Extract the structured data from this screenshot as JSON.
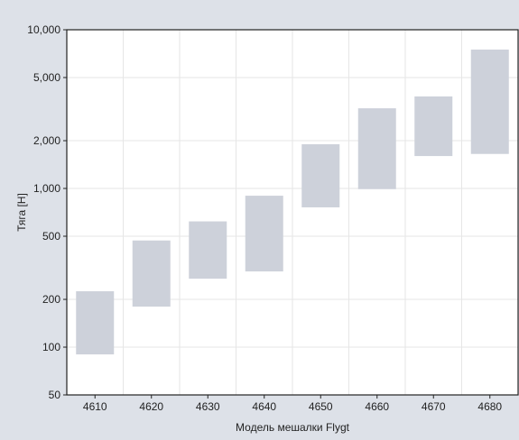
{
  "chart_data": {
    "type": "bar",
    "subtype": "floating-range",
    "title": "",
    "xlabel": "Модель мешалки Flygt",
    "ylabel": "Тяга [Н]",
    "y_scale": "log",
    "ylim": [
      50,
      10000
    ],
    "y_ticks": [
      50,
      100,
      200,
      500,
      1000,
      2000,
      5000,
      10000
    ],
    "y_tick_labels": [
      "50",
      "100",
      "200",
      "500",
      "1,000",
      "2,000",
      "5,000",
      "10,000"
    ],
    "grid": true,
    "legend": "none",
    "categories": [
      "4610",
      "4620",
      "4630",
      "4640",
      "4650",
      "4660",
      "4670",
      "4680"
    ],
    "ranges": [
      [
        90,
        225
      ],
      [
        180,
        470
      ],
      [
        270,
        620
      ],
      [
        300,
        900
      ],
      [
        760,
        1900
      ],
      [
        990,
        3200
      ],
      [
        1600,
        3800
      ],
      [
        1650,
        7500
      ]
    ],
    "colors": {
      "background": "#dde1e8",
      "plot_background": "#ffffff",
      "bar_fill": "#cdd1da",
      "grid": "#e6e6e6",
      "axis": "#222222"
    }
  }
}
